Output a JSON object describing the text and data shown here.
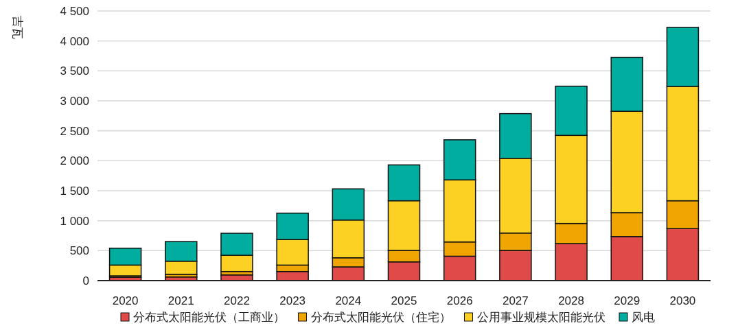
{
  "chart_data": {
    "type": "bar",
    "stacked": true,
    "ylabel": "吉瓦",
    "categories": [
      "2020",
      "2021",
      "2022",
      "2023",
      "2024",
      "2025",
      "2026",
      "2027",
      "2028",
      "2029",
      "2030"
    ],
    "series": [
      {
        "name": "分布式太阳能光伏（工商业）",
        "color": "#e04b4a",
        "values": [
          57,
          61,
          95,
          152,
          229,
          313,
          407,
          504,
          618,
          735,
          868
        ]
      },
      {
        "name": "分布式太阳能光伏（住宅）",
        "color": "#f0a500",
        "values": [
          23,
          45,
          57,
          107,
          152,
          191,
          238,
          290,
          336,
          399,
          465
        ]
      },
      {
        "name": "公用事业规模太阳能光伏",
        "color": "#fcd124",
        "values": [
          179,
          218,
          271,
          428,
          630,
          829,
          1036,
          1247,
          1470,
          1692,
          1908
        ]
      },
      {
        "name": "风电",
        "color": "#00ad9f",
        "values": [
          282,
          328,
          367,
          439,
          520,
          598,
          669,
          746,
          821,
          900,
          985
        ]
      }
    ],
    "ylim": [
      0,
      4500
    ],
    "yticks": [
      0,
      500,
      {
        "value": 1000,
        "label": "1 000"
      },
      {
        "value": 1500,
        "label": "1 500"
      },
      {
        "value": 2000,
        "label": "2 000"
      },
      {
        "value": 2500,
        "label": "2 500"
      },
      {
        "value": 3000,
        "label": "3 000"
      },
      {
        "value": 3500,
        "label": "3 500"
      },
      {
        "value": 4000,
        "label": "4 000"
      },
      {
        "value": 4500,
        "label": "4 500"
      }
    ],
    "grid": "y",
    "legend": "bottom"
  }
}
